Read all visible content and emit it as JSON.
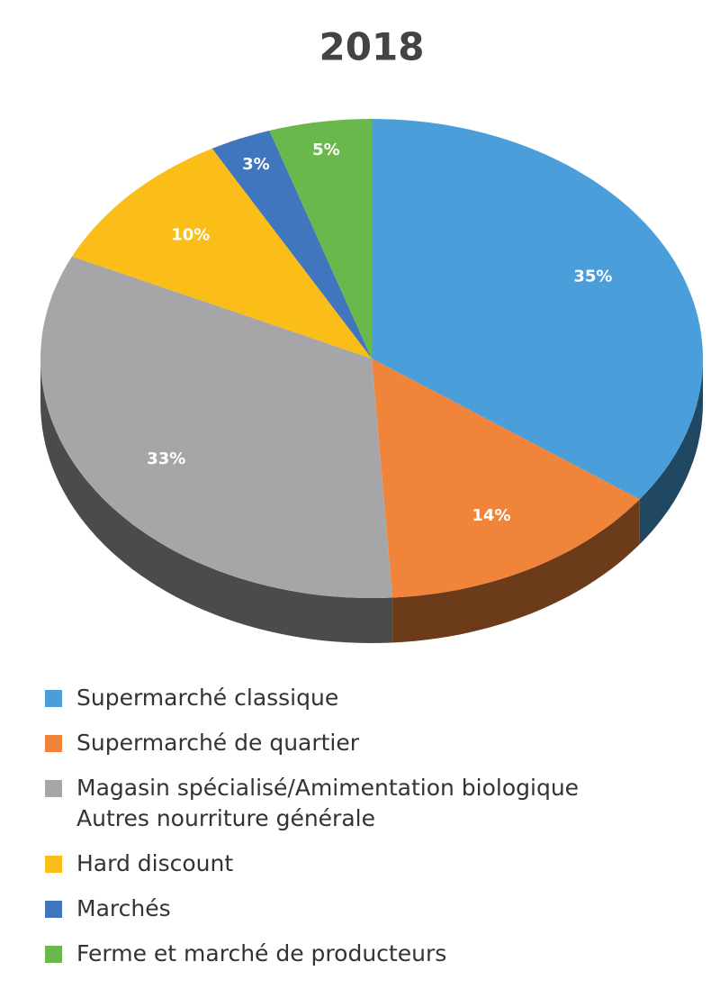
{
  "chart_data": {
    "type": "pie",
    "title": "2018",
    "categories": [
      "Supermarché classique",
      "Supermarché de quartier",
      "Magasin spécialisé/Amimentation biologique\nAutres nourriture générale",
      "Hard discount",
      "Marchés",
      "Ferme et marché de producteurs"
    ],
    "values": [
      35,
      14,
      33,
      10,
      3,
      5
    ],
    "value_labels": [
      "35%",
      "14%",
      "33%",
      "10%",
      "3%",
      "5%"
    ],
    "colors": [
      "#4a9fda",
      "#f0843a",
      "#a6a6a8",
      "#fbbd17",
      "#3f76bd",
      "#6ab84c"
    ]
  }
}
